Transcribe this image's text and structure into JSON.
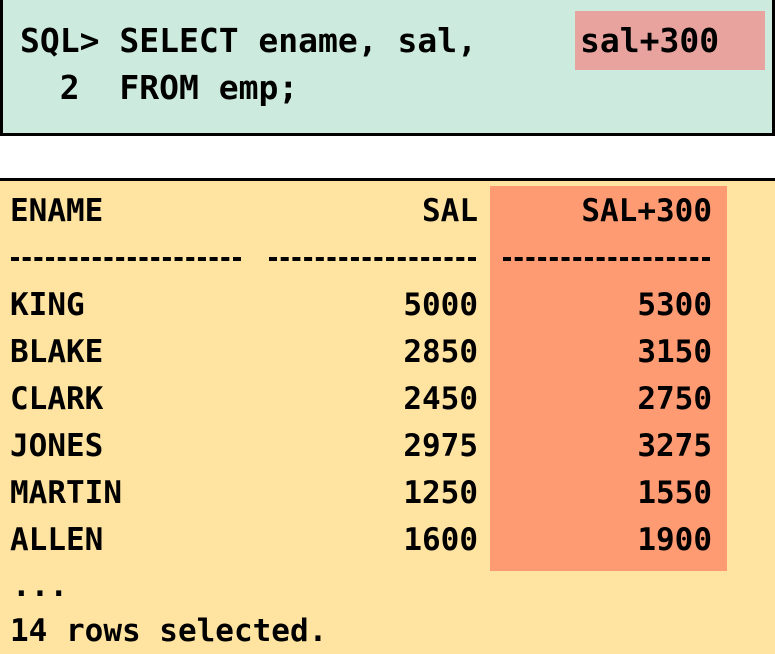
{
  "query": {
    "prompt": "SQL>",
    "line1_text": "SELECT ename, sal,",
    "line1_highlight": "sal+300",
    "line2_number": "2",
    "line2_text": "FROM emp;",
    "highlight_color": "#e8a39e"
  },
  "result": {
    "columns": [
      "ENAME",
      "SAL",
      "SAL+300"
    ],
    "separator": [
      "----------",
      "---------",
      "---------"
    ],
    "rows": [
      {
        "ename": "KING",
        "sal": "5000",
        "sal300": "5300"
      },
      {
        "ename": "BLAKE",
        "sal": "2850",
        "sal300": "3150"
      },
      {
        "ename": "CLARK",
        "sal": "2450",
        "sal300": "2750"
      },
      {
        "ename": "JONES",
        "sal": "2975",
        "sal300": "3275"
      },
      {
        "ename": "MARTIN",
        "sal": "1250",
        "sal300": "1550"
      },
      {
        "ename": "ALLEN",
        "sal": "1600",
        "sal300": "1900"
      }
    ],
    "ellipsis": "...",
    "footer": "14 rows selected.",
    "highlight_color": "#ff9b72"
  },
  "colors": {
    "query_background": "#cdeade",
    "result_background": "#ffe3a0",
    "text": "#000000"
  }
}
